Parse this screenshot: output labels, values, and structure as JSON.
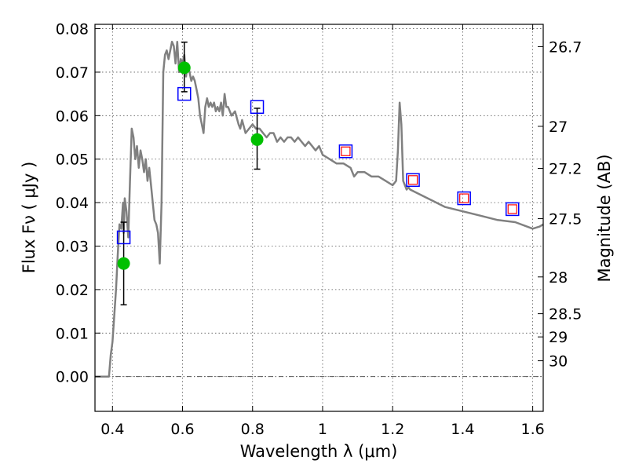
{
  "chart_data": {
    "type": "scatter",
    "title": "",
    "xlabel": "Wavelength  λ (μm)",
    "ylabel": "Flux  Fν  ( μJy )",
    "y2label": "Magnitude (AB)",
    "xlim": [
      0.35,
      1.63
    ],
    "ylim": [
      -0.008,
      0.081
    ],
    "grid": true,
    "x_ticks": [
      0.4,
      0.6,
      0.8,
      1.0,
      1.2,
      1.4,
      1.6
    ],
    "x_tick_labels": [
      "0.4",
      "0.6",
      "0.8",
      "1",
      "1.2",
      "1.4",
      "1.6"
    ],
    "y_ticks": [
      0.0,
      0.01,
      0.02,
      0.03,
      0.04,
      0.05,
      0.06,
      0.07,
      0.08
    ],
    "y_tick_labels": [
      "0.00",
      "0.01",
      "0.02",
      "0.03",
      "0.04",
      "0.05",
      "0.06",
      "0.07",
      "0.08"
    ],
    "mag_ticks": [
      26.7,
      27,
      27.2,
      27.5,
      28,
      28.5,
      29,
      30
    ],
    "mag_tick_labels": [
      "26.7",
      "27",
      "27.2",
      "27.5",
      "28",
      "28.5",
      "29",
      "30"
    ],
    "mag_zero_point": 23.9,
    "colors": {
      "model": "#808080",
      "observed": "#00c000",
      "errorbar": "#000000",
      "model_photometry": "#0000ff",
      "inner_square": "#ff0000",
      "zero_line": "#555555",
      "grid": "#555555"
    },
    "series": [
      {
        "name": "model SED",
        "type": "line",
        "x": [
          0.35,
          0.39,
          0.395,
          0.4,
          0.41,
          0.415,
          0.42,
          0.425,
          0.43,
          0.432,
          0.435,
          0.44,
          0.445,
          0.45,
          0.455,
          0.46,
          0.465,
          0.47,
          0.475,
          0.48,
          0.485,
          0.49,
          0.495,
          0.5,
          0.505,
          0.51,
          0.515,
          0.52,
          0.525,
          0.53,
          0.535,
          0.54,
          0.545,
          0.55,
          0.555,
          0.56,
          0.565,
          0.57,
          0.575,
          0.58,
          0.585,
          0.59,
          0.595,
          0.6,
          0.605,
          0.61,
          0.615,
          0.62,
          0.625,
          0.63,
          0.635,
          0.64,
          0.645,
          0.65,
          0.655,
          0.66,
          0.665,
          0.67,
          0.675,
          0.68,
          0.685,
          0.69,
          0.695,
          0.7,
          0.705,
          0.71,
          0.715,
          0.72,
          0.725,
          0.73,
          0.74,
          0.75,
          0.76,
          0.765,
          0.77,
          0.78,
          0.79,
          0.8,
          0.81,
          0.82,
          0.83,
          0.84,
          0.85,
          0.86,
          0.87,
          0.88,
          0.89,
          0.9,
          0.91,
          0.92,
          0.93,
          0.94,
          0.95,
          0.96,
          0.97,
          0.98,
          0.99,
          1.0,
          1.02,
          1.04,
          1.06,
          1.08,
          1.09,
          1.1,
          1.12,
          1.14,
          1.16,
          1.18,
          1.2,
          1.21,
          1.215,
          1.22,
          1.225,
          1.23,
          1.235,
          1.24,
          1.245,
          1.25,
          1.3,
          1.35,
          1.4,
          1.45,
          1.5,
          1.55,
          1.6,
          1.62,
          1.63
        ],
        "y": [
          0.0,
          0.0,
          0.005,
          0.008,
          0.02,
          0.028,
          0.035,
          0.034,
          0.04,
          0.033,
          0.041,
          0.038,
          0.032,
          0.045,
          0.057,
          0.055,
          0.05,
          0.053,
          0.048,
          0.052,
          0.05,
          0.047,
          0.05,
          0.045,
          0.048,
          0.044,
          0.04,
          0.036,
          0.035,
          0.033,
          0.026,
          0.04,
          0.07,
          0.074,
          0.075,
          0.073,
          0.075,
          0.077,
          0.076,
          0.072,
          0.077,
          0.07,
          0.073,
          0.072,
          0.074,
          0.069,
          0.072,
          0.07,
          0.068,
          0.069,
          0.068,
          0.066,
          0.064,
          0.06,
          0.058,
          0.056,
          0.062,
          0.064,
          0.062,
          0.063,
          0.062,
          0.063,
          0.061,
          0.062,
          0.061,
          0.063,
          0.06,
          0.065,
          0.062,
          0.062,
          0.06,
          0.061,
          0.058,
          0.057,
          0.059,
          0.056,
          0.057,
          0.058,
          0.057,
          0.057,
          0.056,
          0.055,
          0.056,
          0.056,
          0.054,
          0.055,
          0.054,
          0.055,
          0.055,
          0.054,
          0.055,
          0.054,
          0.053,
          0.054,
          0.053,
          0.052,
          0.053,
          0.051,
          0.05,
          0.049,
          0.049,
          0.048,
          0.046,
          0.047,
          0.047,
          0.046,
          0.046,
          0.045,
          0.044,
          0.045,
          0.052,
          0.063,
          0.058,
          0.045,
          0.044,
          0.043,
          0.0435,
          0.043,
          0.041,
          0.039,
          0.038,
          0.037,
          0.036,
          0.0355,
          0.034,
          0.0345,
          0.035
        ]
      },
      {
        "name": "observed",
        "type": "scatter-errorbar",
        "x": [
          0.432,
          0.605,
          0.813
        ],
        "y": [
          0.026,
          0.071,
          0.0545
        ],
        "yerr_low": [
          0.0095,
          0.0055,
          0.0068
        ],
        "yerr_high": [
          0.0095,
          0.0059,
          0.0072
        ]
      },
      {
        "name": "model photometry",
        "type": "scatter",
        "marker": "open-square",
        "x": [
          0.432,
          0.605,
          0.813,
          1.066,
          1.258,
          1.404,
          1.542
        ],
        "y": [
          0.032,
          0.065,
          0.062,
          0.0518,
          0.0452,
          0.041,
          0.0385
        ]
      },
      {
        "name": "inner square",
        "type": "scatter",
        "marker": "open-square",
        "x": [
          1.066,
          1.258,
          1.404,
          1.542
        ],
        "y": [
          0.0518,
          0.0452,
          0.041,
          0.0385
        ]
      }
    ]
  }
}
